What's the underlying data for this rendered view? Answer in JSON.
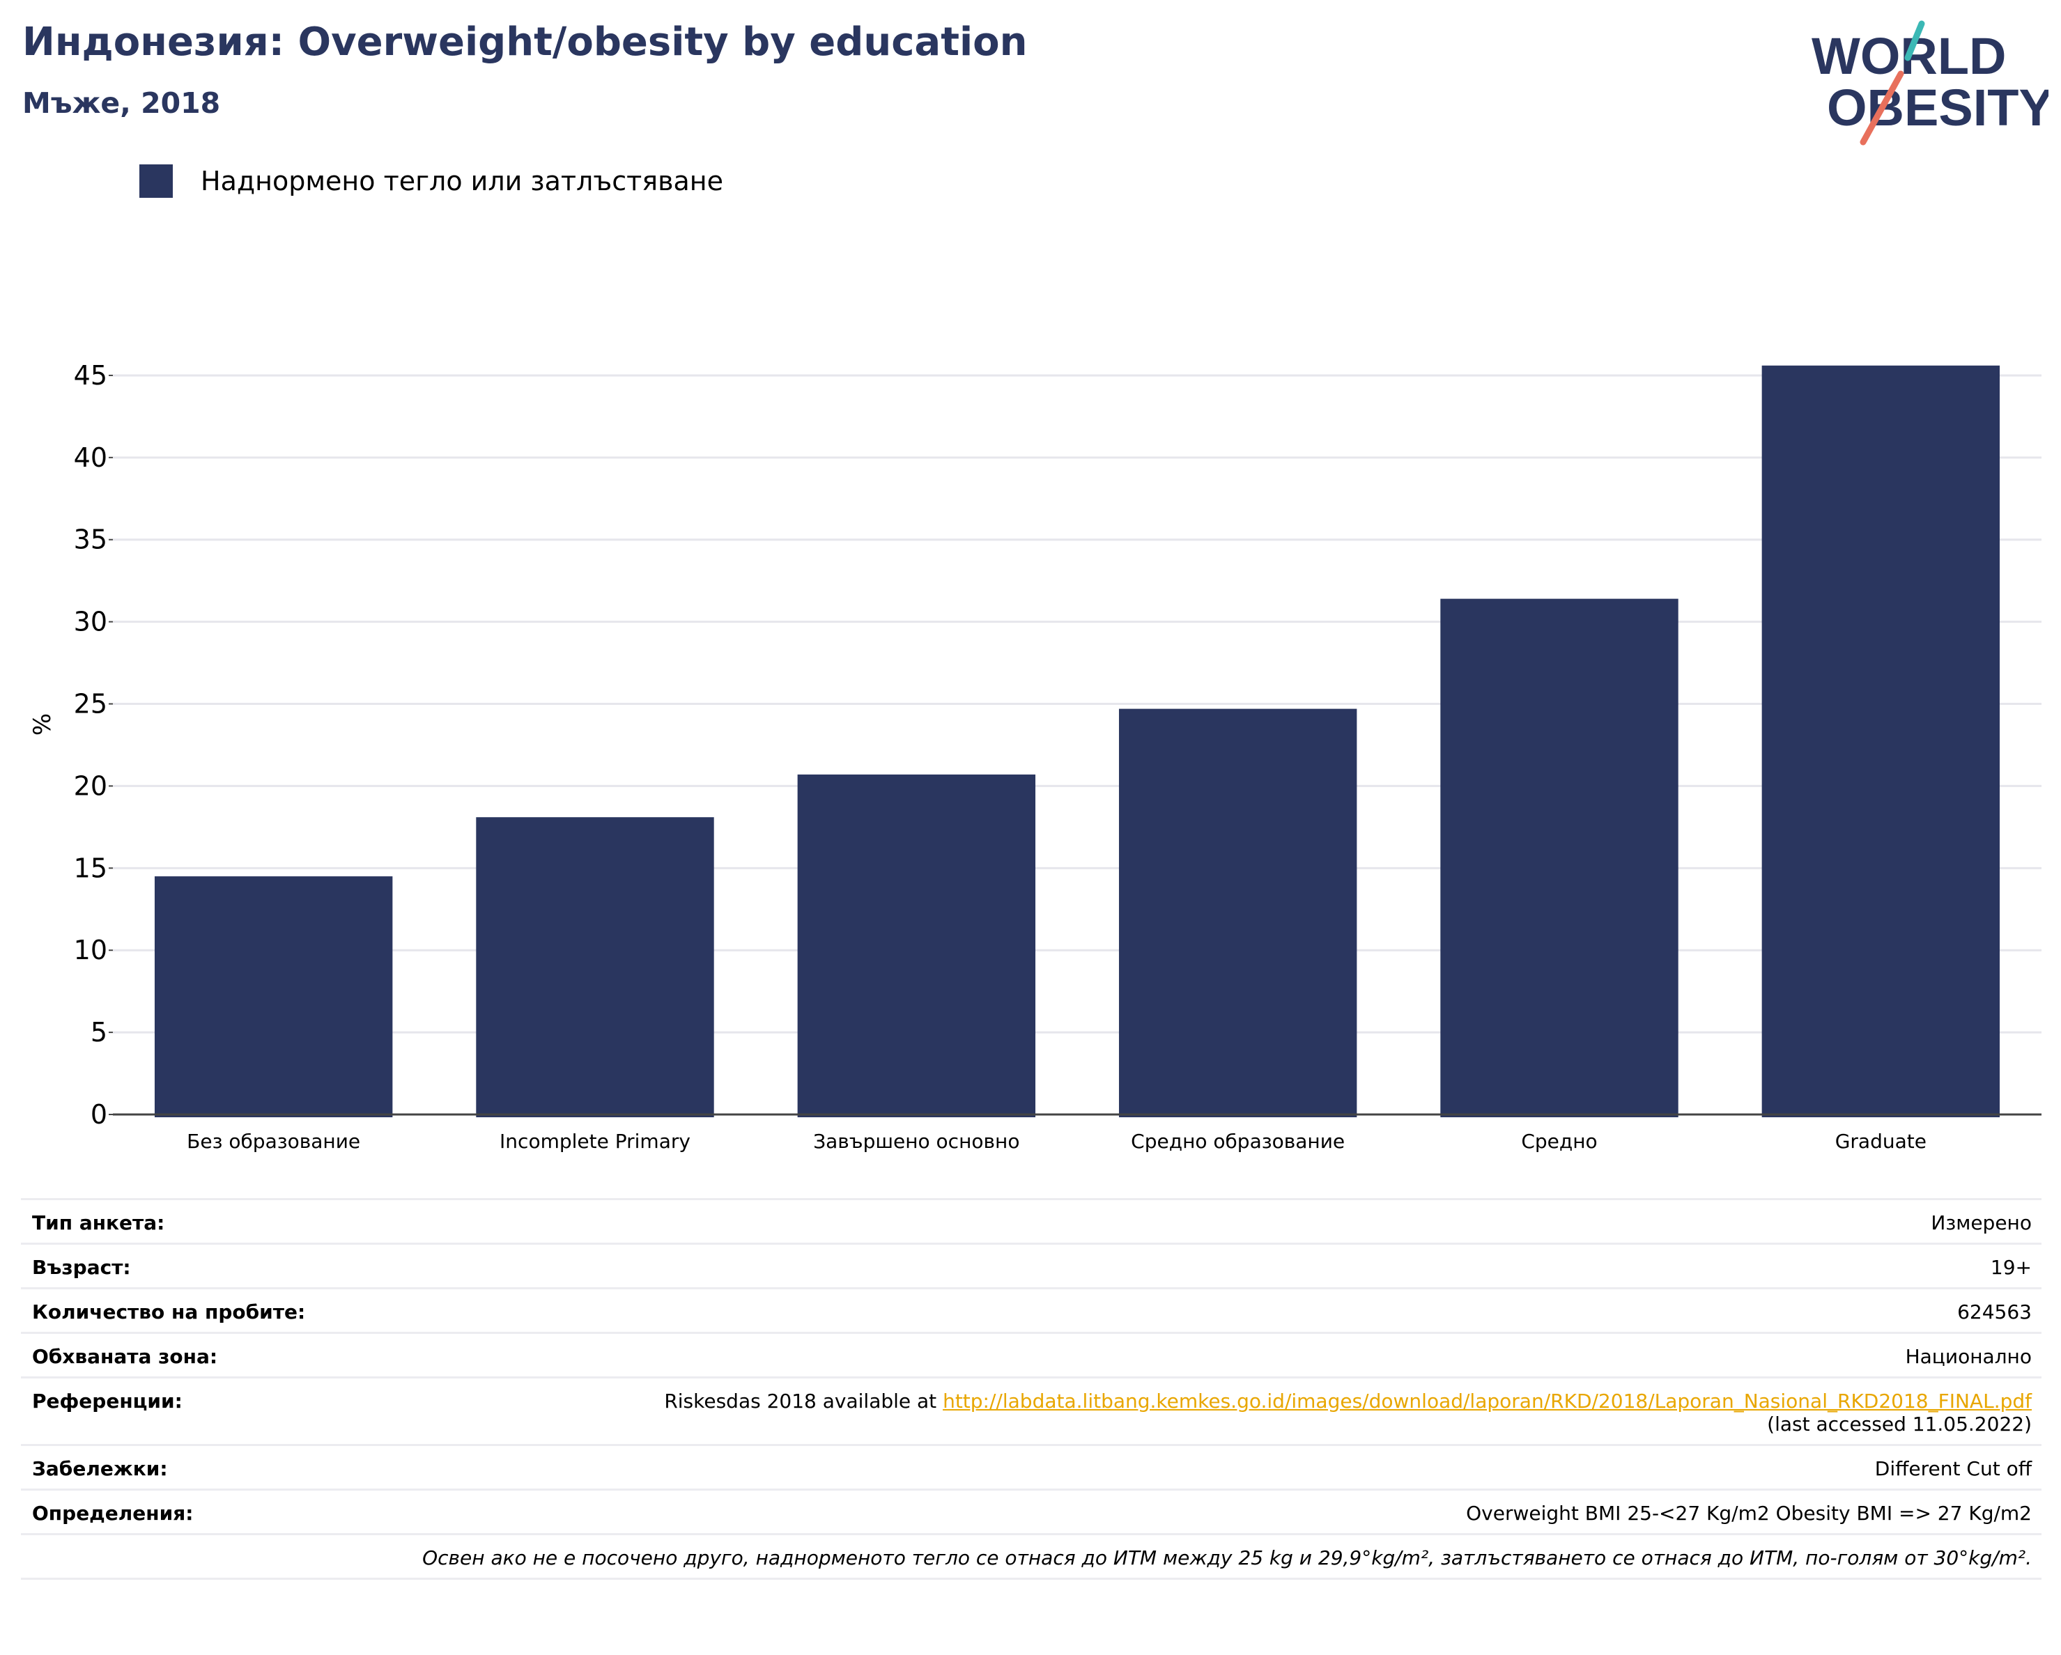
{
  "header": {
    "title": "Индонезия: Overweight/obesity by education",
    "subtitle": "Мъже, 2018",
    "logo_line1": "WORLD",
    "logo_line2": "OBESITY"
  },
  "colors": {
    "bar": "#2a365f",
    "title": "#2a365f",
    "link": "#e8a600",
    "logo_teal": "#3bb8b5",
    "logo_coral": "#e8705c"
  },
  "legend": {
    "label": "Наднормено тегло или затлъстяване"
  },
  "chart_data": {
    "type": "bar",
    "categories": [
      "Без образование",
      "Incomplete Primary",
      "Завършено основно",
      "Средно образование",
      "Средно",
      "Graduate"
    ],
    "series": [
      {
        "name": "Наднормено тегло или затлъстяване",
        "values": [
          14.5,
          18.1,
          20.7,
          24.7,
          31.4,
          45.6
        ]
      }
    ],
    "ylabel": "%",
    "ylim": [
      0,
      47.5
    ],
    "yticks": [
      0,
      5,
      10,
      15,
      20,
      25,
      30,
      35,
      40,
      45
    ],
    "grid": true,
    "legend_position": "top-left"
  },
  "info": {
    "survey_type_label": "Тип анкета:",
    "survey_type_value": "Измерено",
    "age_label": "Възраст:",
    "age_value": "19+",
    "sample_label": "Количество на пробите:",
    "sample_value": "624563",
    "area_label": "Обхваната зона:",
    "area_value": "Национално",
    "refs_label": "Референции:",
    "refs_prefix": "Riskesdas 2018 available at ",
    "refs_link": "http://labdata.litbang.kemkes.go.id/images/download/laporan/RKD/2018/Laporan_Nasional_RKD2018_FINAL.pdf",
    "refs_suffix": "(last accessed 11.05.2022)",
    "notes_label": "Забележки:",
    "notes_value": "Different Cut off",
    "defs_label": "Определения:",
    "defs_value": "Overweight BMI 25-<27 Kg/m2 Obesity BMI => 27 Kg/m2",
    "footnote": "Освен ако не е посочено друго, наднорменото тегло се отнася до ИТМ между 25 kg и 29,9°kg/m², затлъстяването се отнася до ИТМ, по-голям от 30°kg/m²."
  }
}
